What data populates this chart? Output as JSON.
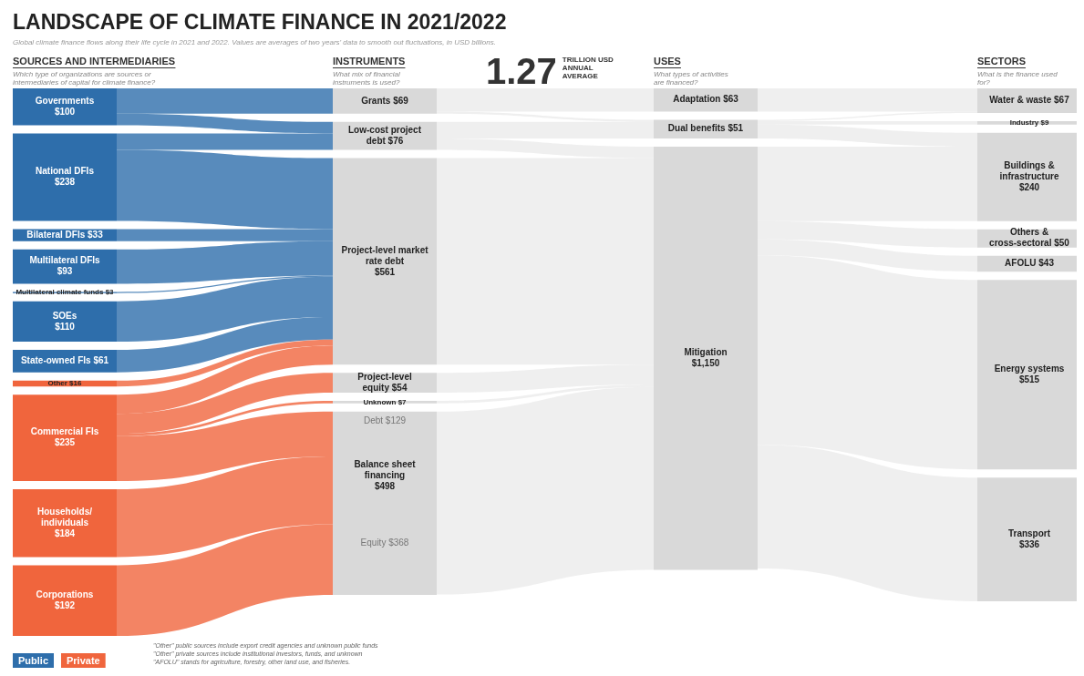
{
  "chart_data": {
    "type": "other",
    "title": "LANDSCAPE OF CLIMATE FINANCE IN 2021/2022",
    "subtitle": "Global climate finance flows along their life cycle in 2021 and 2022. Values are averages of two years' data to smooth out fluctuations, in USD billions.",
    "categories": [
      "Governments",
      "National DFIs",
      "Bilateral DFIs",
      "Multilateral DFIs",
      "Multilateral climate funds",
      "SOEs",
      "State-owned FIs",
      "Other",
      "Commercial FIs",
      "Households/ individuals",
      "Corporations",
      "Grants",
      "Low-cost project debt",
      "Project-level market rate debt",
      "Project-level equity",
      "Unknown",
      "Balance sheet financing",
      "Adaptation",
      "Dual benefits",
      "Mitigation",
      "Water & waste",
      "Industry",
      "Buildings & infrastructure",
      "Others & cross-sectoral",
      "AFOLU",
      "Energy systems",
      "Transport"
    ],
    "series": [
      {
        "name": "SOURCES AND INTERMEDIARIES",
        "values": [
          100,
          238,
          33,
          93,
          3,
          110,
          61,
          16,
          235,
          184,
          192,
          null,
          null,
          null,
          null,
          null,
          null,
          null,
          null,
          null,
          null,
          null,
          null,
          null,
          null,
          null,
          null
        ],
        "value_labels": [
          "$100",
          "$238",
          "$33",
          "$93",
          "$3",
          "$110",
          "$61",
          "$16",
          "$235",
          "$184",
          "$192",
          null,
          null,
          null,
          null,
          null,
          null,
          null,
          null,
          null,
          null,
          null,
          null,
          null,
          null,
          null,
          null
        ],
        "colors": [
          "#2e6eab",
          "#2e6eab",
          "#2e6eab",
          "#2e6eab",
          "#2e6eab",
          "#2e6eab",
          "#2e6eab",
          "#f0653d",
          "#f0653d",
          "#f0653d",
          "#f0653d",
          null,
          null,
          null,
          null,
          null,
          null,
          null,
          null,
          null,
          null,
          null,
          null,
          null,
          null,
          null,
          null
        ]
      },
      {
        "name": "INSTRUMENTS",
        "values": [
          null,
          null,
          null,
          null,
          null,
          null,
          null,
          null,
          null,
          null,
          null,
          69,
          76,
          561,
          54,
          7,
          498,
          null,
          null,
          null,
          null,
          null,
          null,
          null,
          null,
          null,
          null
        ],
        "value_labels": [
          null,
          null,
          null,
          null,
          null,
          null,
          null,
          null,
          null,
          null,
          null,
          "$69",
          "$76",
          "$561",
          "$54",
          "$7",
          "$498",
          null,
          null,
          null,
          null,
          null,
          null,
          null,
          null,
          null,
          null
        ],
        "colors": [
          null,
          null,
          null,
          null,
          null,
          null,
          null,
          null,
          null,
          null,
          null,
          "#d9d9d9",
          "#d9d9d9",
          "#d9d9d9",
          "#d9d9d9",
          "#d9d9d9",
          "#d9d9d9",
          null,
          null,
          null,
          null,
          null,
          null,
          null,
          null,
          null,
          null
        ]
      },
      {
        "name": "USES",
        "values": [
          null,
          null,
          null,
          null,
          null,
          null,
          null,
          null,
          null,
          null,
          null,
          null,
          null,
          null,
          null,
          null,
          null,
          63,
          51,
          1150,
          null,
          null,
          null,
          null,
          null,
          null,
          null
        ],
        "value_labels": [
          null,
          null,
          null,
          null,
          null,
          null,
          null,
          null,
          null,
          null,
          null,
          null,
          null,
          null,
          null,
          null,
          null,
          "$63",
          "$51",
          "$1,150",
          null,
          null,
          null,
          null,
          null,
          null,
          null
        ],
        "colors": [
          null,
          null,
          null,
          null,
          null,
          null,
          null,
          null,
          null,
          null,
          null,
          null,
          null,
          null,
          null,
          null,
          null,
          "#d9d9d9",
          "#d9d9d9",
          "#d9d9d9",
          null,
          null,
          null,
          null,
          null,
          null,
          null
        ]
      },
      {
        "name": "SECTORS",
        "values": [
          null,
          null,
          null,
          null,
          null,
          null,
          null,
          null,
          null,
          null,
          null,
          null,
          null,
          null,
          null,
          null,
          null,
          null,
          null,
          null,
          67,
          9,
          240,
          50,
          43,
          515,
          336
        ],
        "value_labels": [
          null,
          null,
          null,
          null,
          null,
          null,
          null,
          null,
          null,
          null,
          null,
          null,
          null,
          null,
          null,
          null,
          null,
          null,
          null,
          null,
          "$67",
          "$9",
          "$240",
          "$50",
          "$43",
          "$515",
          "$336"
        ],
        "colors": [
          null,
          null,
          null,
          null,
          null,
          null,
          null,
          null,
          null,
          null,
          null,
          null,
          null,
          null,
          null,
          null,
          null,
          null,
          null,
          null,
          "#d9d9d9",
          "#d9d9d9",
          "#d9d9d9",
          "#d9d9d9",
          "#d9d9d9",
          "#d9d9d9",
          "#d9d9d9"
        ]
      }
    ],
    "annotations": [
      "Which type of organizations are sources or intermediaries of capital for climate finance?",
      "What mix of financial instruments is used?",
      "What types of activities are financed?",
      "What is the finance used for?",
      "1.27",
      "TRILLION USD ANNUAL AVERAGE",
      "Debt $129",
      "Equity $368",
      "\"Other\" public sources include export credit agencies and unknown public funds",
      "\"Other\" private sources include institutional investors, funds, and unknown",
      "\"AFOLU\" stands for agriculture, forestry, other land use, and fisheries.",
      "Public",
      "Private"
    ]
  }
}
